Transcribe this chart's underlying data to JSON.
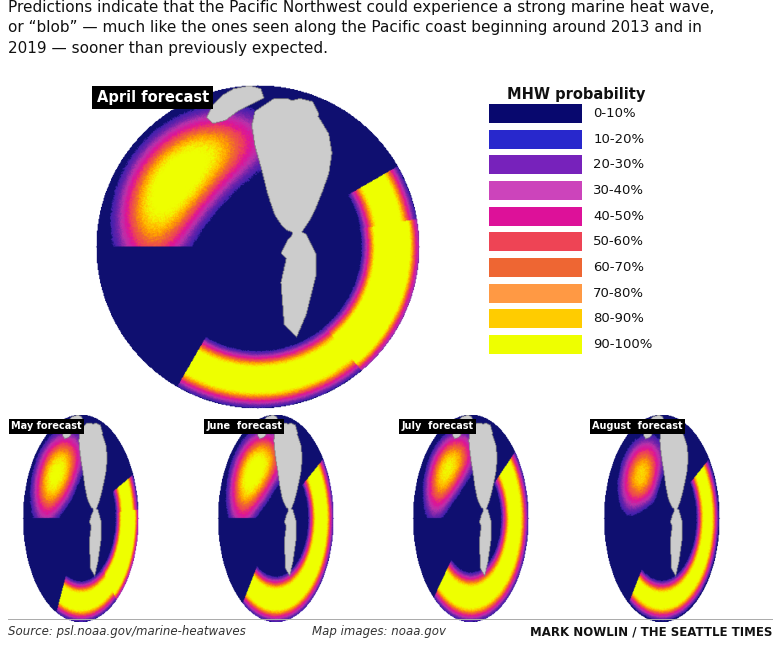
{
  "title_text": "Predictions indicate that the Pacific Northwest could experience a strong marine heat wave,\nor “blob” — much like the ones seen along the Pacific coast beginning around 2013 and in\n2019 — sooner than previously expected.",
  "legend_title": "MHW probability",
  "legend_entries": [
    {
      "label": "0-10%",
      "color": "#08086e"
    },
    {
      "label": "10-20%",
      "color": "#2828cc"
    },
    {
      "label": "20-30%",
      "color": "#7722bb"
    },
    {
      "label": "30-40%",
      "color": "#cc44bb"
    },
    {
      "label": "40-50%",
      "color": "#dd1199"
    },
    {
      "label": "50-60%",
      "color": "#ee4455"
    },
    {
      "label": "60-70%",
      "color": "#ee6633"
    },
    {
      "label": "70-80%",
      "color": "#ff9944"
    },
    {
      "label": "80-90%",
      "color": "#ffcc00"
    },
    {
      "label": "90-100%",
      "color": "#eeff00"
    }
  ],
  "forecast_labels": [
    "April forecast",
    "May forecast",
    "June  forecast",
    "July  forecast",
    "August  forecast"
  ],
  "source_text": "Source: psl.noaa.gov/marine-heatwaves",
  "map_images_text": "Map images: noaa.gov",
  "credit_text": "MARK NOWLIN / THE SEATTLE TIMES",
  "bg_color": "#ffffff",
  "title_fontsize": 11.0,
  "footer_fontsize": 8.5
}
